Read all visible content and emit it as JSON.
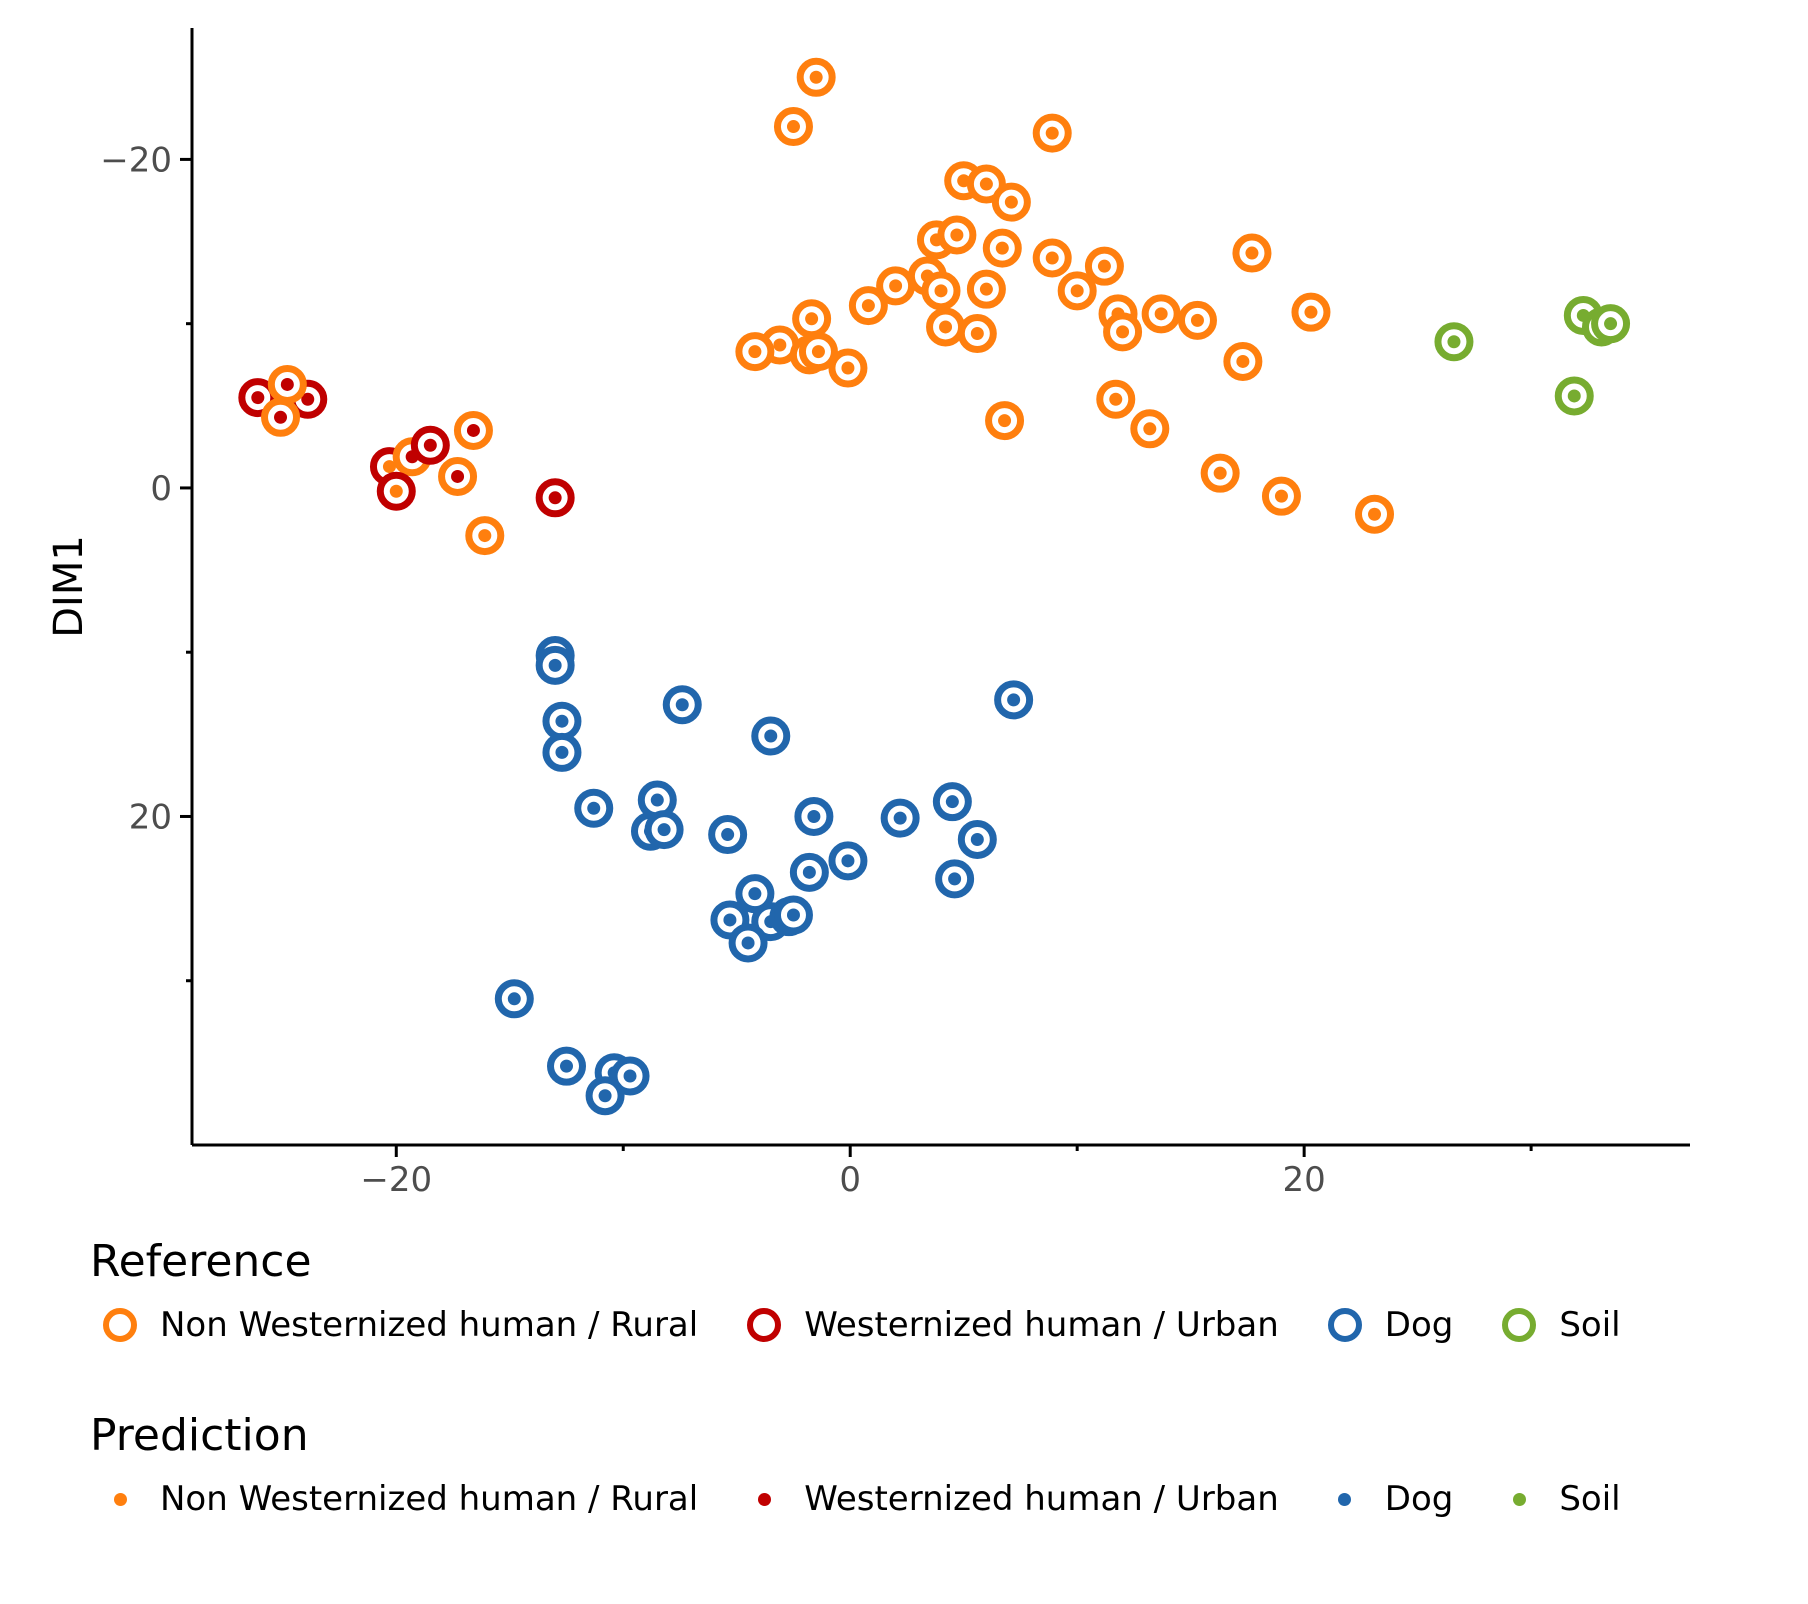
{
  "chart_data": {
    "type": "scatter",
    "xlabel": "",
    "ylabel": "DIM1",
    "xlim": [
      -29,
      37
    ],
    "ylim": [
      40,
      -28
    ],
    "y_reversed": true,
    "x_ticks": [
      -20,
      0,
      20
    ],
    "y_ticks": [
      -20,
      0,
      20
    ],
    "grid": false,
    "colors": {
      "Non Westernized human / Rural": "#FF7F0E",
      "Westernized human / Urban": "#C00000",
      "Dog": "#2166AC",
      "Soil": "#77AC30"
    },
    "legend_reference": {
      "title": "Reference",
      "entries": [
        "Non Westernized human / Rural",
        "Westernized human / Urban",
        "Dog",
        "Soil"
      ]
    },
    "legend_prediction": {
      "title": "Prediction",
      "entries": [
        "Non Westernized human / Rural",
        "Westernized human / Urban",
        "Dog",
        "Soil"
      ]
    },
    "legend_position": "bottom",
    "points": [
      {
        "x": -26.1,
        "y": -5.5,
        "ref": "Westernized human / Urban",
        "pred": "Westernized human / Urban"
      },
      {
        "x": -23.9,
        "y": -5.4,
        "ref": "Westernized human / Urban",
        "pred": "Westernized human / Urban"
      },
      {
        "x": -24.8,
        "y": -6.3,
        "ref": "Non Westernized human / Rural",
        "pred": "Westernized human / Urban"
      },
      {
        "x": -25.1,
        "y": -4.3,
        "ref": "Non Westernized human / Rural",
        "pred": "Westernized human / Urban"
      },
      {
        "x": -20.3,
        "y": -1.3,
        "ref": "Westernized human / Urban",
        "pred": "Non Westernized human / Rural"
      },
      {
        "x": -19.3,
        "y": -1.9,
        "ref": "Non Westernized human / Rural",
        "pred": "Westernized human / Urban"
      },
      {
        "x": -18.5,
        "y": -2.6,
        "ref": "Westernized human / Urban",
        "pred": "Westernized human / Urban"
      },
      {
        "x": -20.0,
        "y": 0.2,
        "ref": "Westernized human / Urban",
        "pred": "Non Westernized human / Rural"
      },
      {
        "x": -17.3,
        "y": -0.7,
        "ref": "Non Westernized human / Rural",
        "pred": "Westernized human / Urban"
      },
      {
        "x": -16.6,
        "y": -3.5,
        "ref": "Non Westernized human / Rural",
        "pred": "Westernized human / Urban"
      },
      {
        "x": -16.1,
        "y": 2.9,
        "ref": "Non Westernized human / Rural",
        "pred": "Non Westernized human / Rural"
      },
      {
        "x": -13.0,
        "y": 0.6,
        "ref": "Westernized human / Urban",
        "pred": "Westernized human / Urban"
      },
      {
        "x": -1.5,
        "y": -25.0,
        "ref": "Non Westernized human / Rural",
        "pred": "Non Westernized human / Rural"
      },
      {
        "x": -2.5,
        "y": -22.0,
        "ref": "Non Westernized human / Rural",
        "pred": "Non Westernized human / Rural"
      },
      {
        "x": 8.9,
        "y": -21.6,
        "ref": "Non Westernized human / Rural",
        "pred": "Non Westernized human / Rural"
      },
      {
        "x": 5.0,
        "y": -18.7,
        "ref": "Non Westernized human / Rural",
        "pred": "Non Westernized human / Rural"
      },
      {
        "x": 6.0,
        "y": -18.5,
        "ref": "Non Westernized human / Rural",
        "pred": "Non Westernized human / Rural"
      },
      {
        "x": 7.1,
        "y": -17.4,
        "ref": "Non Westernized human / Rural",
        "pred": "Non Westernized human / Rural"
      },
      {
        "x": 3.8,
        "y": -15.1,
        "ref": "Non Westernized human / Rural",
        "pred": "Non Westernized human / Rural"
      },
      {
        "x": 4.7,
        "y": -15.4,
        "ref": "Non Westernized human / Rural",
        "pred": "Non Westernized human / Rural"
      },
      {
        "x": 6.7,
        "y": -14.6,
        "ref": "Non Westernized human / Rural",
        "pred": "Non Westernized human / Rural"
      },
      {
        "x": 8.9,
        "y": -14.0,
        "ref": "Non Westernized human / Rural",
        "pred": "Non Westernized human / Rural"
      },
      {
        "x": 11.2,
        "y": -13.5,
        "ref": "Non Westernized human / Rural",
        "pred": "Non Westernized human / Rural"
      },
      {
        "x": 17.7,
        "y": -14.3,
        "ref": "Non Westernized human / Rural",
        "pred": "Non Westernized human / Rural"
      },
      {
        "x": 3.4,
        "y": -12.9,
        "ref": "Non Westernized human / Rural",
        "pred": "Non Westernized human / Rural"
      },
      {
        "x": 4.0,
        "y": -12.0,
        "ref": "Non Westernized human / Rural",
        "pred": "Non Westernized human / Rural"
      },
      {
        "x": 2.0,
        "y": -12.3,
        "ref": "Non Westernized human / Rural",
        "pred": "Non Westernized human / Rural"
      },
      {
        "x": 6.0,
        "y": -12.1,
        "ref": "Non Westernized human / Rural",
        "pred": "Non Westernized human / Rural"
      },
      {
        "x": 10.0,
        "y": -12.0,
        "ref": "Non Westernized human / Rural",
        "pred": "Non Westernized human / Rural"
      },
      {
        "x": 0.8,
        "y": -11.1,
        "ref": "Non Westernized human / Rural",
        "pred": "Non Westernized human / Rural"
      },
      {
        "x": 11.8,
        "y": -10.6,
        "ref": "Non Westernized human / Rural",
        "pred": "Non Westernized human / Rural"
      },
      {
        "x": 13.7,
        "y": -10.6,
        "ref": "Non Westernized human / Rural",
        "pred": "Non Westernized human / Rural"
      },
      {
        "x": 15.3,
        "y": -10.2,
        "ref": "Non Westernized human / Rural",
        "pred": "Non Westernized human / Rural"
      },
      {
        "x": 20.3,
        "y": -10.7,
        "ref": "Non Westernized human / Rural",
        "pred": "Non Westernized human / Rural"
      },
      {
        "x": -1.7,
        "y": -10.3,
        "ref": "Non Westernized human / Rural",
        "pred": "Non Westernized human / Rural"
      },
      {
        "x": 4.2,
        "y": -9.8,
        "ref": "Non Westernized human / Rural",
        "pred": "Non Westernized human / Rural"
      },
      {
        "x": 5.6,
        "y": -9.4,
        "ref": "Non Westernized human / Rural",
        "pred": "Non Westernized human / Rural"
      },
      {
        "x": 12.0,
        "y": -9.5,
        "ref": "Non Westernized human / Rural",
        "pred": "Non Westernized human / Rural"
      },
      {
        "x": -3.1,
        "y": -8.7,
        "ref": "Non Westernized human / Rural",
        "pred": "Non Westernized human / Rural"
      },
      {
        "x": -4.2,
        "y": -8.3,
        "ref": "Non Westernized human / Rural",
        "pred": "Non Westernized human / Rural"
      },
      {
        "x": -1.8,
        "y": -8.1,
        "ref": "Non Westernized human / Rural",
        "pred": "Non Westernized human / Rural"
      },
      {
        "x": -1.4,
        "y": -8.3,
        "ref": "Non Westernized human / Rural",
        "pred": "Non Westernized human / Rural"
      },
      {
        "x": -0.1,
        "y": -7.3,
        "ref": "Non Westernized human / Rural",
        "pred": "Non Westernized human / Rural"
      },
      {
        "x": 17.3,
        "y": -7.7,
        "ref": "Non Westernized human / Rural",
        "pred": "Non Westernized human / Rural"
      },
      {
        "x": 11.7,
        "y": -5.4,
        "ref": "Non Westernized human / Rural",
        "pred": "Non Westernized human / Rural"
      },
      {
        "x": 6.8,
        "y": -4.1,
        "ref": "Non Westernized human / Rural",
        "pred": "Non Westernized human / Rural"
      },
      {
        "x": 13.2,
        "y": -3.6,
        "ref": "Non Westernized human / Rural",
        "pred": "Non Westernized human / Rural"
      },
      {
        "x": 16.3,
        "y": -0.9,
        "ref": "Non Westernized human / Rural",
        "pred": "Non Westernized human / Rural"
      },
      {
        "x": 19.0,
        "y": 0.5,
        "ref": "Non Westernized human / Rural",
        "pred": "Non Westernized human / Rural"
      },
      {
        "x": 23.1,
        "y": 1.6,
        "ref": "Non Westernized human / Rural",
        "pred": "Non Westernized human / Rural"
      },
      {
        "x": 26.6,
        "y": -8.9,
        "ref": "Soil",
        "pred": "Soil"
      },
      {
        "x": 32.3,
        "y": -10.5,
        "ref": "Soil",
        "pred": "Soil"
      },
      {
        "x": 33.1,
        "y": -9.8,
        "ref": "Soil",
        "pred": "Soil"
      },
      {
        "x": 33.5,
        "y": -10.0,
        "ref": "Soil",
        "pred": "Soil"
      },
      {
        "x": 31.9,
        "y": -5.6,
        "ref": "Soil",
        "pred": "Soil"
      },
      {
        "x": -13.0,
        "y": 10.2,
        "ref": "Dog",
        "pred": "Dog"
      },
      {
        "x": -13.0,
        "y": 10.8,
        "ref": "Dog",
        "pred": "Dog"
      },
      {
        "x": -7.4,
        "y": 13.2,
        "ref": "Dog",
        "pred": "Dog"
      },
      {
        "x": -12.7,
        "y": 14.2,
        "ref": "Dog",
        "pred": "Dog"
      },
      {
        "x": -12.7,
        "y": 16.1,
        "ref": "Dog",
        "pred": "Dog"
      },
      {
        "x": -3.5,
        "y": 15.1,
        "ref": "Dog",
        "pred": "Dog"
      },
      {
        "x": 7.2,
        "y": 12.9,
        "ref": "Dog",
        "pred": "Dog"
      },
      {
        "x": -11.3,
        "y": 19.5,
        "ref": "Dog",
        "pred": "Dog"
      },
      {
        "x": -8.5,
        "y": 19.0,
        "ref": "Dog",
        "pred": "Dog"
      },
      {
        "x": -8.8,
        "y": 20.9,
        "ref": "Dog",
        "pred": "Dog"
      },
      {
        "x": -8.2,
        "y": 20.8,
        "ref": "Dog",
        "pred": "Dog"
      },
      {
        "x": -5.4,
        "y": 21.1,
        "ref": "Dog",
        "pred": "Dog"
      },
      {
        "x": -1.6,
        "y": 20.0,
        "ref": "Dog",
        "pred": "Dog"
      },
      {
        "x": 2.2,
        "y": 20.1,
        "ref": "Dog",
        "pred": "Dog"
      },
      {
        "x": 4.5,
        "y": 19.1,
        "ref": "Dog",
        "pred": "Dog"
      },
      {
        "x": 5.6,
        "y": 21.4,
        "ref": "Dog",
        "pred": "Dog"
      },
      {
        "x": -0.1,
        "y": 22.7,
        "ref": "Dog",
        "pred": "Dog"
      },
      {
        "x": -1.8,
        "y": 23.4,
        "ref": "Dog",
        "pred": "Dog"
      },
      {
        "x": 4.6,
        "y": 23.8,
        "ref": "Dog",
        "pred": "Dog"
      },
      {
        "x": -4.2,
        "y": 24.7,
        "ref": "Dog",
        "pred": "Dog"
      },
      {
        "x": -5.3,
        "y": 26.3,
        "ref": "Dog",
        "pred": "Dog"
      },
      {
        "x": -3.5,
        "y": 26.4,
        "ref": "Dog",
        "pred": "Dog"
      },
      {
        "x": -2.7,
        "y": 26.1,
        "ref": "Dog",
        "pred": "Dog"
      },
      {
        "x": -2.5,
        "y": 26.0,
        "ref": "Dog",
        "pred": "Dog"
      },
      {
        "x": -4.5,
        "y": 27.7,
        "ref": "Dog",
        "pred": "Dog"
      },
      {
        "x": -14.8,
        "y": 31.1,
        "ref": "Dog",
        "pred": "Dog"
      },
      {
        "x": -12.5,
        "y": 35.2,
        "ref": "Dog",
        "pred": "Dog"
      },
      {
        "x": -10.4,
        "y": 35.6,
        "ref": "Dog",
        "pred": "Dog"
      },
      {
        "x": -9.7,
        "y": 35.8,
        "ref": "Dog",
        "pred": "Dog"
      },
      {
        "x": -10.8,
        "y": 37.0,
        "ref": "Dog",
        "pred": "Dog"
      }
    ]
  }
}
